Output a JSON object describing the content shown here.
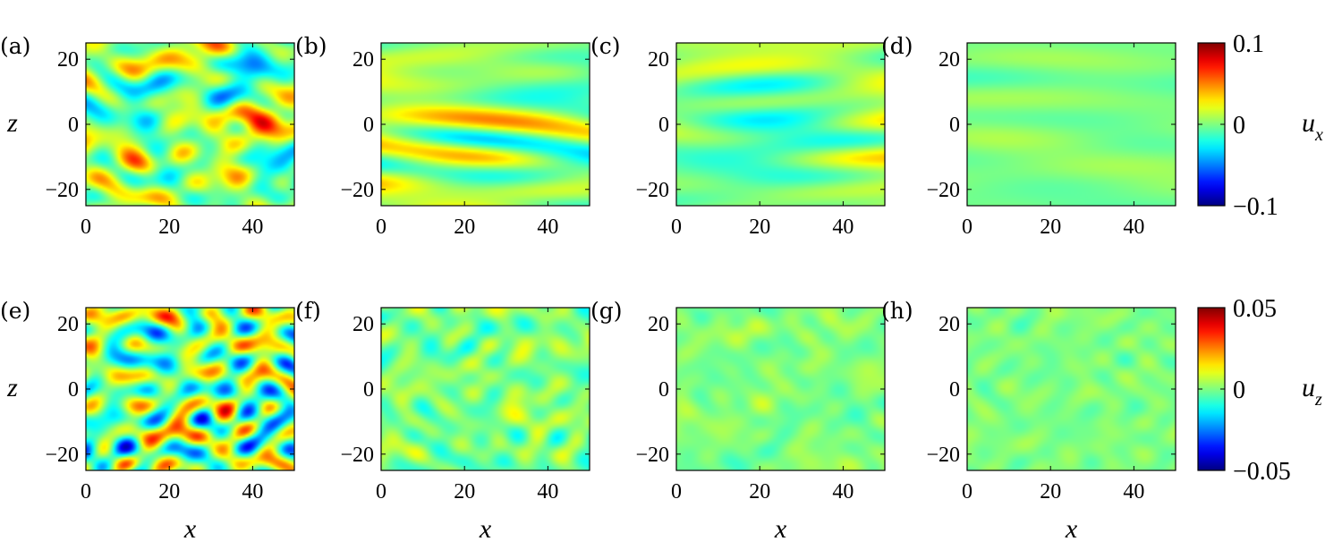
{
  "chart_data": [
    {
      "type": "heatmap",
      "panel_label": "(a)",
      "row": 0,
      "col": 0,
      "field": "u_x",
      "amplitude": 0.085,
      "pattern": "mixed",
      "ylabel": "z",
      "xlabel": "",
      "xticks": [
        "0",
        "20",
        "40"
      ],
      "yticks": [
        "20",
        "0",
        "−20"
      ],
      "xlim": [
        0,
        50
      ],
      "ylim": [
        -25,
        25
      ],
      "seed": 11
    },
    {
      "type": "heatmap",
      "panel_label": "(b)",
      "row": 0,
      "col": 1,
      "field": "u_x",
      "amplitude": 0.05,
      "pattern": "streaky",
      "ylabel": "",
      "xlabel": "",
      "xticks": [
        "0",
        "20",
        "40"
      ],
      "yticks": [
        "20",
        "0",
        "−20"
      ],
      "xlim": [
        0,
        50
      ],
      "ylim": [
        -25,
        25
      ],
      "seed": 23
    },
    {
      "type": "heatmap",
      "panel_label": "(c)",
      "row": 0,
      "col": 2,
      "field": "u_x",
      "amplitude": 0.035,
      "pattern": "streaky",
      "ylabel": "",
      "xlabel": "",
      "xticks": [
        "0",
        "20",
        "40"
      ],
      "yticks": [
        "20",
        "0",
        "−20"
      ],
      "xlim": [
        0,
        50
      ],
      "ylim": [
        -25,
        25
      ],
      "seed": 37
    },
    {
      "type": "heatmap",
      "panel_label": "(d)",
      "row": 0,
      "col": 3,
      "field": "u_x",
      "amplitude": 0.012,
      "pattern": "streaky",
      "ylabel": "",
      "xlabel": "",
      "xticks": [
        "0",
        "20",
        "40"
      ],
      "yticks": [
        "20",
        "0",
        "−20"
      ],
      "xlim": [
        0,
        50
      ],
      "ylim": [
        -25,
        25
      ],
      "seed": 41
    },
    {
      "type": "heatmap",
      "panel_label": "(e)",
      "row": 1,
      "col": 0,
      "field": "u_z",
      "amplitude": 0.045,
      "pattern": "blobs",
      "ylabel": "z",
      "xlabel": "x",
      "xticks": [
        "0",
        "20",
        "40"
      ],
      "yticks": [
        "20",
        "0",
        "−20"
      ],
      "xlim": [
        0,
        50
      ],
      "ylim": [
        -25,
        25
      ],
      "seed": 53
    },
    {
      "type": "heatmap",
      "panel_label": "(f)",
      "row": 1,
      "col": 1,
      "field": "u_z",
      "amplitude": 0.014,
      "pattern": "blobs",
      "ylabel": "",
      "xlabel": "x",
      "xticks": [
        "0",
        "20",
        "40"
      ],
      "yticks": [
        "20",
        "0",
        "−20"
      ],
      "xlim": [
        0,
        50
      ],
      "ylim": [
        -25,
        25
      ],
      "seed": 61
    },
    {
      "type": "heatmap",
      "panel_label": "(g)",
      "row": 1,
      "col": 2,
      "field": "u_z",
      "amplitude": 0.009,
      "pattern": "blobs",
      "ylabel": "",
      "xlabel": "x",
      "xticks": [
        "0",
        "20",
        "40"
      ],
      "yticks": [
        "20",
        "0",
        "−20"
      ],
      "xlim": [
        0,
        50
      ],
      "ylim": [
        -25,
        25
      ],
      "seed": 73
    },
    {
      "type": "heatmap",
      "panel_label": "(h)",
      "row": 1,
      "col": 3,
      "field": "u_z",
      "amplitude": 0.007,
      "pattern": "blobs",
      "ylabel": "",
      "xlabel": "x",
      "xticks": [
        "0",
        "20",
        "40"
      ],
      "yticks": [
        "20",
        "0",
        "−20"
      ],
      "xlim": [
        0,
        50
      ],
      "ylim": [
        -25,
        25
      ],
      "seed": 89
    }
  ],
  "colorbars": [
    {
      "row": 0,
      "label_main": "u",
      "label_sub": "x",
      "ticks": [
        "0.1",
        "0",
        "−0.1"
      ],
      "range": [
        -0.1,
        0.1
      ]
    },
    {
      "row": 1,
      "label_main": "u",
      "label_sub": "z",
      "ticks": [
        "0.05",
        "0",
        "−0.05"
      ],
      "range": [
        -0.05,
        0.05
      ]
    }
  ],
  "colormap": "jet"
}
